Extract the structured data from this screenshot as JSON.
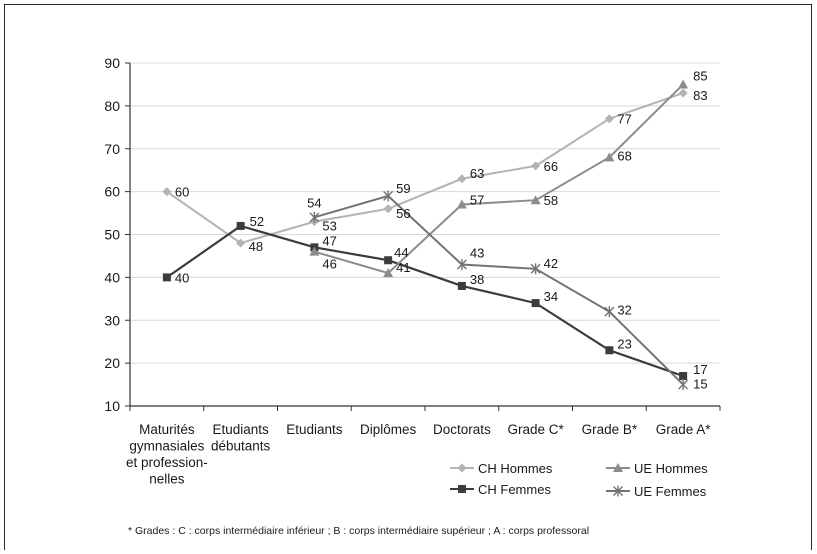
{
  "chart_data": {
    "type": "line",
    "categories": [
      [
        "Maturités",
        "gymnasiales",
        "et profession-",
        "nelles"
      ],
      [
        "Etudiants",
        "débutants"
      ],
      [
        "Etudiants"
      ],
      [
        "Diplômes"
      ],
      [
        "Doctorats"
      ],
      [
        "Grade C*"
      ],
      [
        "Grade B*"
      ],
      [
        "Grade A*"
      ]
    ],
    "ylim": [
      10,
      90
    ],
    "yticks": [
      10,
      20,
      30,
      40,
      50,
      60,
      70,
      80,
      90
    ],
    "grid": "horizontal",
    "legend_position": "bottom-right",
    "series": [
      {
        "name": "CH Hommes",
        "color": "#b3b3b3",
        "marker": "diamond",
        "values": [
          60,
          48,
          53,
          56,
          63,
          66,
          77,
          83
        ]
      },
      {
        "name": "CH Femmes",
        "color": "#3c3c3c",
        "marker": "square",
        "values": [
          40,
          52,
          47,
          44,
          38,
          34,
          23,
          17
        ]
      },
      {
        "name": "UE Hommes",
        "color": "#8c8c8c",
        "marker": "triangle",
        "values": [
          null,
          null,
          46,
          41,
          57,
          58,
          68,
          85
        ]
      },
      {
        "name": "UE Femmes",
        "color": "#737373",
        "marker": "star",
        "values": [
          null,
          null,
          54,
          59,
          43,
          42,
          32,
          15
        ]
      }
    ]
  },
  "footnote": "* Grades : C : corps intermédiaire inférieur ; B : corps intermédiaire supérieur ; A : corps professoral"
}
